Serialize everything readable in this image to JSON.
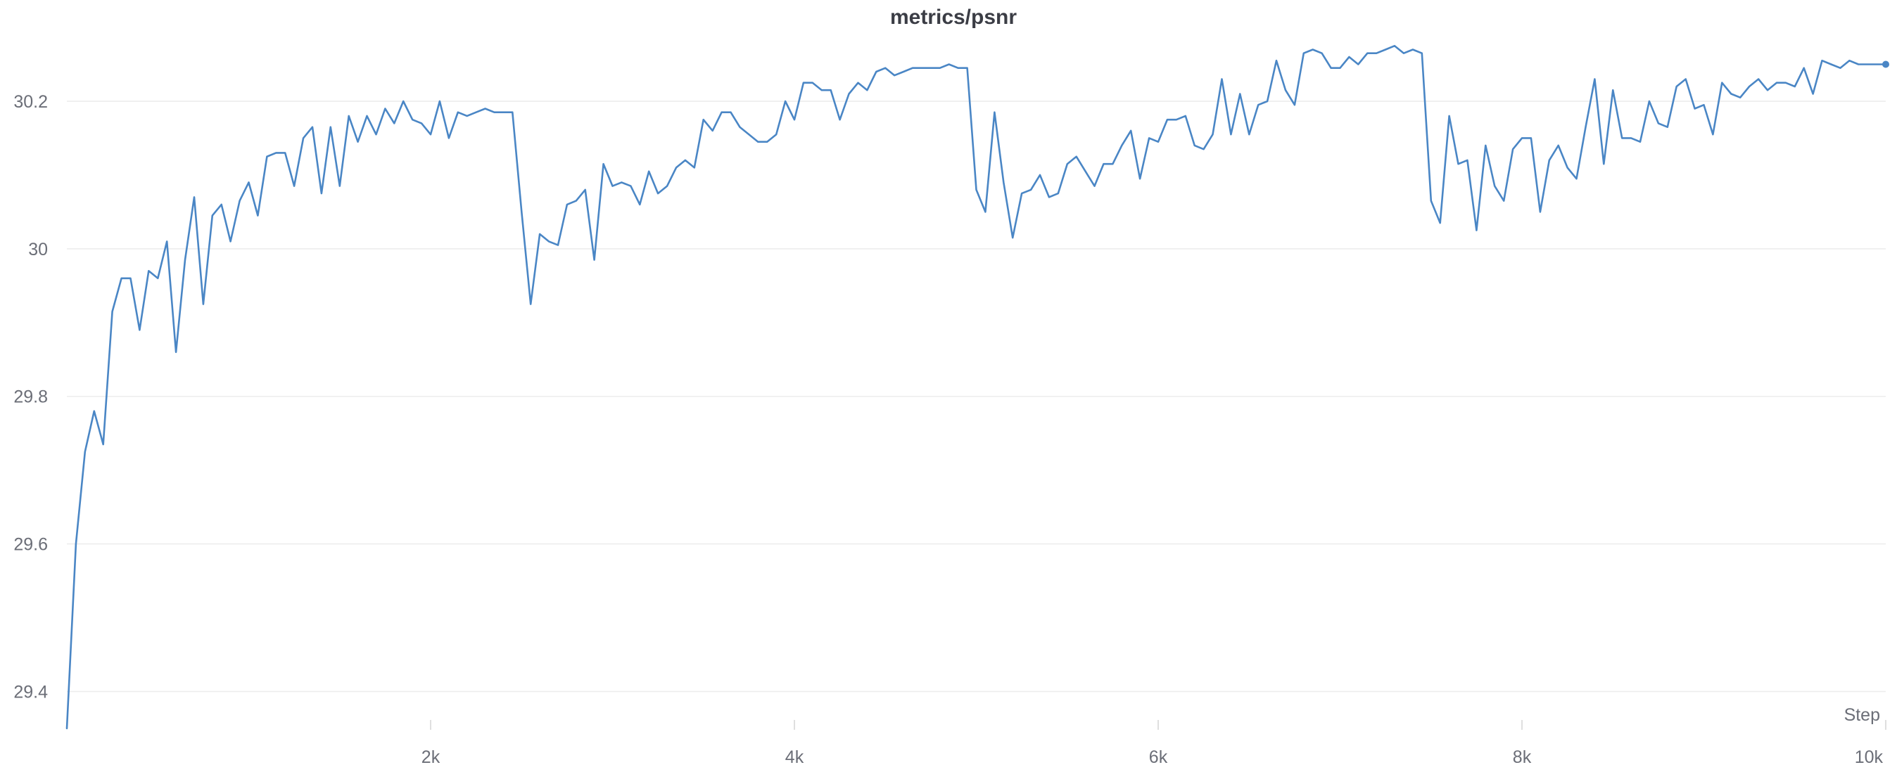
{
  "chart_data": {
    "type": "line",
    "title": "metrics/psnr",
    "xlabel": "Step",
    "ylabel": "",
    "xlim": [
      0,
      10000
    ],
    "ylim": [
      29.35,
      30.28
    ],
    "x_ticks": [
      2000,
      4000,
      6000,
      8000,
      10000
    ],
    "x_tick_labels": [
      "2k",
      "4k",
      "6k",
      "8k",
      "10k"
    ],
    "y_ticks": [
      29.4,
      29.6,
      29.8,
      30,
      30.2
    ],
    "y_tick_labels": [
      "29.4",
      "29.6",
      "29.8",
      "30",
      "30.2"
    ],
    "grid": true,
    "color": "#4a86c5",
    "series": [
      {
        "name": "",
        "points": [
          [
            0,
            29.35
          ],
          [
            50,
            29.6
          ],
          [
            100,
            29.725
          ],
          [
            150,
            29.78
          ],
          [
            200,
            29.735
          ],
          [
            250,
            29.915
          ],
          [
            300,
            29.96
          ],
          [
            350,
            29.96
          ],
          [
            400,
            29.89
          ],
          [
            450,
            29.97
          ],
          [
            500,
            29.96
          ],
          [
            550,
            30.01
          ],
          [
            600,
            29.86
          ],
          [
            650,
            29.985
          ],
          [
            700,
            30.07
          ],
          [
            750,
            29.925
          ],
          [
            800,
            30.045
          ],
          [
            850,
            30.06
          ],
          [
            900,
            30.01
          ],
          [
            950,
            30.065
          ],
          [
            1000,
            30.09
          ],
          [
            1050,
            30.045
          ],
          [
            1100,
            30.125
          ],
          [
            1150,
            30.13
          ],
          [
            1200,
            30.13
          ],
          [
            1250,
            30.085
          ],
          [
            1300,
            30.15
          ],
          [
            1350,
            30.165
          ],
          [
            1400,
            30.075
          ],
          [
            1450,
            30.165
          ],
          [
            1500,
            30.085
          ],
          [
            1550,
            30.18
          ],
          [
            1600,
            30.145
          ],
          [
            1650,
            30.18
          ],
          [
            1700,
            30.155
          ],
          [
            1750,
            30.19
          ],
          [
            1800,
            30.17
          ],
          [
            1850,
            30.2
          ],
          [
            1900,
            30.175
          ],
          [
            1950,
            30.17
          ],
          [
            2000,
            30.155
          ],
          [
            2050,
            30.2
          ],
          [
            2100,
            30.15
          ],
          [
            2150,
            30.185
          ],
          [
            2200,
            30.18
          ],
          [
            2250,
            30.185
          ],
          [
            2300,
            30.19
          ],
          [
            2350,
            30.185
          ],
          [
            2400,
            30.185
          ],
          [
            2450,
            30.185
          ],
          [
            2500,
            30.05
          ],
          [
            2550,
            29.925
          ],
          [
            2600,
            30.02
          ],
          [
            2650,
            30.01
          ],
          [
            2700,
            30.005
          ],
          [
            2750,
            30.06
          ],
          [
            2800,
            30.065
          ],
          [
            2850,
            30.08
          ],
          [
            2900,
            29.985
          ],
          [
            2950,
            30.115
          ],
          [
            3000,
            30.085
          ],
          [
            3050,
            30.09
          ],
          [
            3100,
            30.085
          ],
          [
            3150,
            30.06
          ],
          [
            3200,
            30.105
          ],
          [
            3250,
            30.075
          ],
          [
            3300,
            30.085
          ],
          [
            3350,
            30.11
          ],
          [
            3400,
            30.12
          ],
          [
            3450,
            30.11
          ],
          [
            3500,
            30.175
          ],
          [
            3550,
            30.16
          ],
          [
            3600,
            30.185
          ],
          [
            3650,
            30.185
          ],
          [
            3700,
            30.165
          ],
          [
            3750,
            30.155
          ],
          [
            3800,
            30.145
          ],
          [
            3850,
            30.145
          ],
          [
            3900,
            30.155
          ],
          [
            3950,
            30.2
          ],
          [
            4000,
            30.175
          ],
          [
            4050,
            30.225
          ],
          [
            4100,
            30.225
          ],
          [
            4150,
            30.215
          ],
          [
            4200,
            30.215
          ],
          [
            4250,
            30.175
          ],
          [
            4300,
            30.21
          ],
          [
            4350,
            30.225
          ],
          [
            4400,
            30.215
          ],
          [
            4450,
            30.24
          ],
          [
            4500,
            30.245
          ],
          [
            4550,
            30.235
          ],
          [
            4600,
            30.24
          ],
          [
            4650,
            30.245
          ],
          [
            4700,
            30.245
          ],
          [
            4750,
            30.245
          ],
          [
            4800,
            30.245
          ],
          [
            4850,
            30.25
          ],
          [
            4900,
            30.245
          ],
          [
            4950,
            30.245
          ],
          [
            5000,
            30.08
          ],
          [
            5050,
            30.05
          ],
          [
            5100,
            30.185
          ],
          [
            5150,
            30.09
          ],
          [
            5200,
            30.015
          ],
          [
            5250,
            30.075
          ],
          [
            5300,
            30.08
          ],
          [
            5350,
            30.1
          ],
          [
            5400,
            30.07
          ],
          [
            5450,
            30.075
          ],
          [
            5500,
            30.115
          ],
          [
            5550,
            30.125
          ],
          [
            5600,
            30.105
          ],
          [
            5650,
            30.085
          ],
          [
            5700,
            30.115
          ],
          [
            5750,
            30.115
          ],
          [
            5800,
            30.14
          ],
          [
            5850,
            30.16
          ],
          [
            5900,
            30.095
          ],
          [
            5950,
            30.15
          ],
          [
            6000,
            30.145
          ],
          [
            6050,
            30.175
          ],
          [
            6100,
            30.175
          ],
          [
            6150,
            30.18
          ],
          [
            6200,
            30.14
          ],
          [
            6250,
            30.135
          ],
          [
            6300,
            30.155
          ],
          [
            6350,
            30.23
          ],
          [
            6400,
            30.155
          ],
          [
            6450,
            30.21
          ],
          [
            6500,
            30.155
          ],
          [
            6550,
            30.195
          ],
          [
            6600,
            30.2
          ],
          [
            6650,
            30.255
          ],
          [
            6700,
            30.215
          ],
          [
            6750,
            30.195
          ],
          [
            6800,
            30.265
          ],
          [
            6850,
            30.27
          ],
          [
            6900,
            30.265
          ],
          [
            6950,
            30.245
          ],
          [
            7000,
            30.245
          ],
          [
            7050,
            30.26
          ],
          [
            7100,
            30.25
          ],
          [
            7150,
            30.265
          ],
          [
            7200,
            30.265
          ],
          [
            7250,
            30.27
          ],
          [
            7300,
            30.275
          ],
          [
            7350,
            30.265
          ],
          [
            7400,
            30.27
          ],
          [
            7450,
            30.265
          ],
          [
            7500,
            30.065
          ],
          [
            7550,
            30.035
          ],
          [
            7600,
            30.18
          ],
          [
            7650,
            30.115
          ],
          [
            7700,
            30.12
          ],
          [
            7750,
            30.025
          ],
          [
            7800,
            30.14
          ],
          [
            7850,
            30.085
          ],
          [
            7900,
            30.065
          ],
          [
            7950,
            30.135
          ],
          [
            8000,
            30.15
          ],
          [
            8050,
            30.15
          ],
          [
            8100,
            30.05
          ],
          [
            8150,
            30.12
          ],
          [
            8200,
            30.14
          ],
          [
            8250,
            30.11
          ],
          [
            8300,
            30.095
          ],
          [
            8350,
            30.165
          ],
          [
            8400,
            30.23
          ],
          [
            8450,
            30.115
          ],
          [
            8500,
            30.215
          ],
          [
            8550,
            30.15
          ],
          [
            8600,
            30.15
          ],
          [
            8650,
            30.145
          ],
          [
            8700,
            30.2
          ],
          [
            8750,
            30.17
          ],
          [
            8800,
            30.165
          ],
          [
            8850,
            30.22
          ],
          [
            8900,
            30.23
          ],
          [
            8950,
            30.19
          ],
          [
            9000,
            30.195
          ],
          [
            9050,
            30.155
          ],
          [
            9100,
            30.225
          ],
          [
            9150,
            30.21
          ],
          [
            9200,
            30.205
          ],
          [
            9250,
            30.22
          ],
          [
            9300,
            30.23
          ],
          [
            9350,
            30.215
          ],
          [
            9400,
            30.225
          ],
          [
            9450,
            30.225
          ],
          [
            9500,
            30.22
          ],
          [
            9550,
            30.245
          ],
          [
            9600,
            30.21
          ],
          [
            9650,
            30.255
          ],
          [
            9700,
            30.25
          ],
          [
            9750,
            30.245
          ],
          [
            9800,
            30.255
          ],
          [
            9850,
            30.25
          ],
          [
            9900,
            30.25
          ],
          [
            10000,
            30.25
          ]
        ]
      }
    ]
  }
}
